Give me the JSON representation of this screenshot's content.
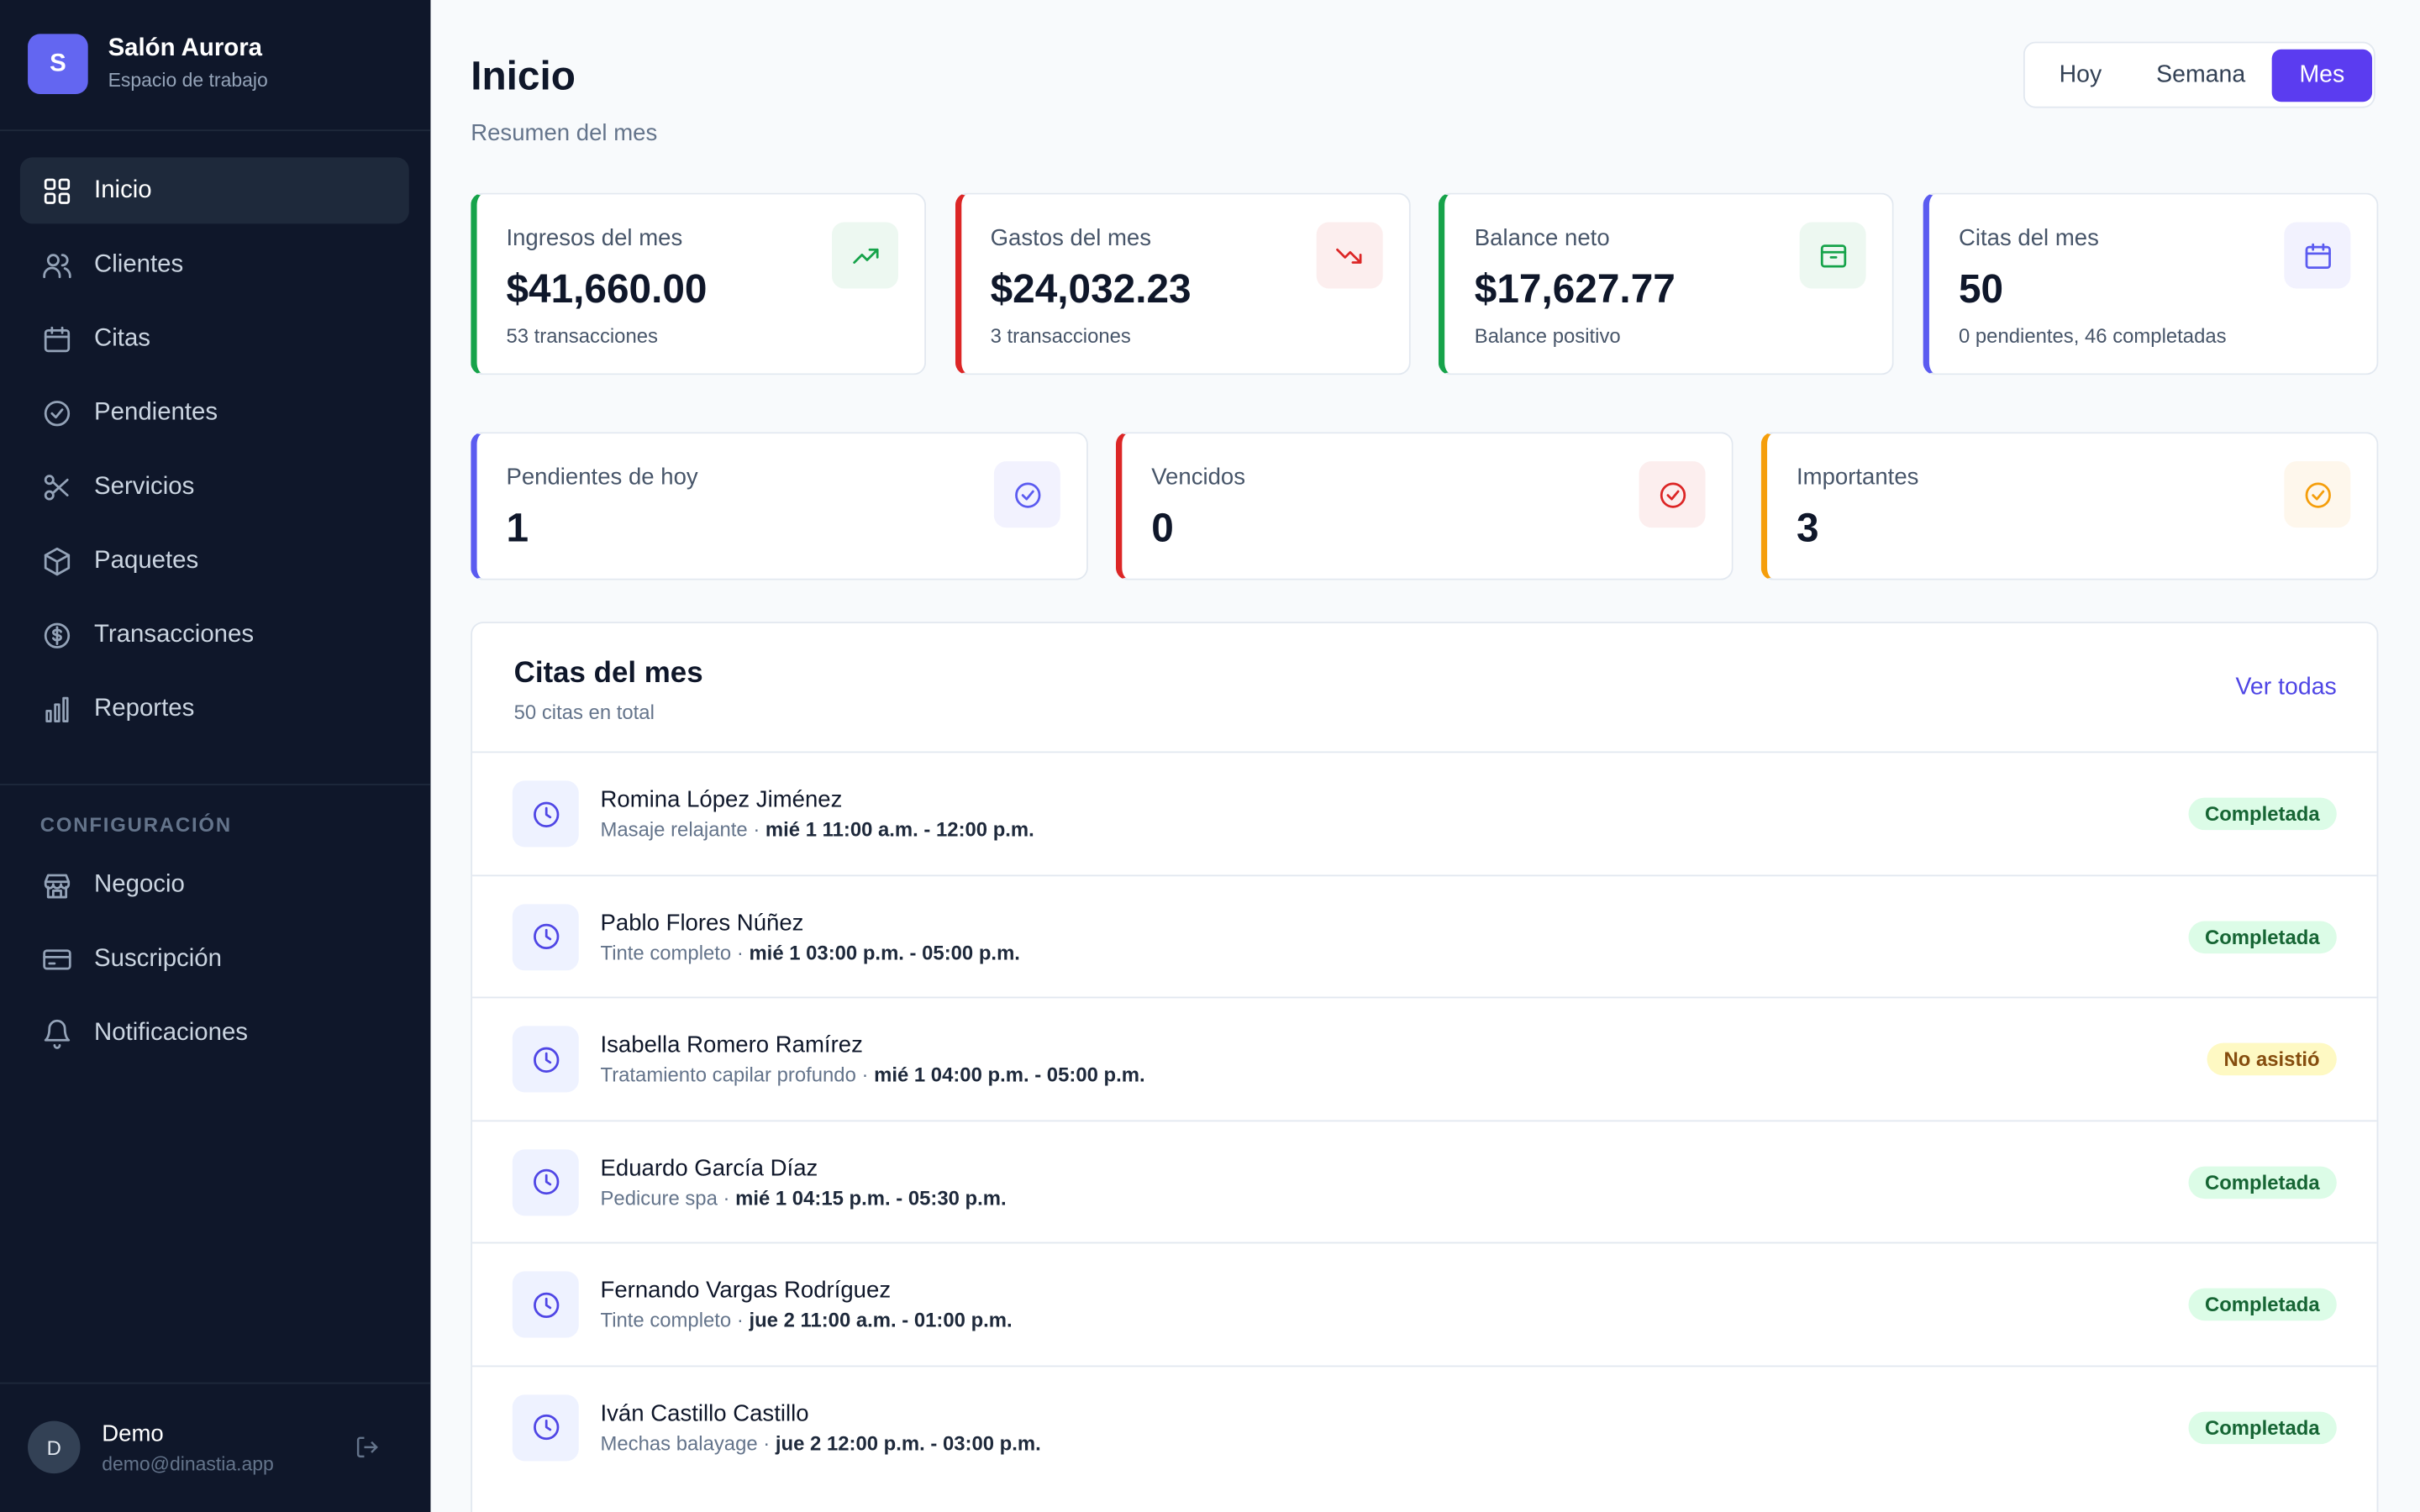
{
  "sidebar": {
    "brand": {
      "initial": "S",
      "name": "Salón Aurora",
      "subtitle": "Espacio de trabajo"
    },
    "nav": [
      "Inicio",
      "Clientes",
      "Citas",
      "Pendientes",
      "Servicios",
      "Paquetes",
      "Transacciones",
      "Reportes"
    ],
    "active_nav": 0,
    "config_title": "CONFIGURACIÓN",
    "config_nav": [
      "Negocio",
      "Suscripción",
      "Notificaciones"
    ],
    "user": {
      "initial": "D",
      "name": "Demo",
      "email": "demo@dinastia.app"
    }
  },
  "header": {
    "title": "Inicio",
    "subtitle": "Resumen del mes",
    "periods": [
      "Hoy",
      "Semana",
      "Mes"
    ],
    "active_period": 2
  },
  "stats": [
    {
      "label": "Ingresos del mes",
      "value": "$41,660.00",
      "note": "53 transacciones",
      "color": "#16a34a"
    },
    {
      "label": "Gastos del mes",
      "value": "$24,032.23",
      "note": "3 transacciones",
      "color": "#dc2626"
    },
    {
      "label": "Balance neto",
      "value": "$17,627.77",
      "note": "Balance positivo",
      "color": "#16a34a"
    },
    {
      "label": "Citas del mes",
      "value": "50",
      "note": "0 pendientes, 46 completadas",
      "color": "#5b5bf0"
    }
  ],
  "tasks": [
    {
      "label": "Pendientes de hoy",
      "value": "1",
      "color": "#5b5bf0"
    },
    {
      "label": "Vencidos",
      "value": "0",
      "color": "#dc2626"
    },
    {
      "label": "Importantes",
      "value": "3",
      "color": "#f59e0b"
    }
  ],
  "appointments": {
    "title": "Citas del mes",
    "subtitle": "50 citas en total",
    "link": "Ver todas",
    "items": [
      {
        "name": "Romina López Jiménez",
        "service": "Masaje relajante",
        "time": "mié 1 11:00 a.m. - 12:00 p.m.",
        "status": "Completada",
        "status_color": "#166534",
        "status_bg": "#dcfce7"
      },
      {
        "name": "Pablo Flores Núñez",
        "service": "Tinte completo",
        "time": "mié 1 03:00 p.m. - 05:00 p.m.",
        "status": "Completada",
        "status_color": "#166534",
        "status_bg": "#dcfce7"
      },
      {
        "name": "Isabella Romero Ramírez",
        "service": "Tratamiento capilar profundo",
        "time": "mié 1 04:00 p.m. - 05:00 p.m.",
        "status": "No asistió",
        "status_color": "#854d0e",
        "status_bg": "#fef9c3"
      },
      {
        "name": "Eduardo García Díaz",
        "service": "Pedicure spa",
        "time": "mié 1 04:15 p.m. - 05:30 p.m.",
        "status": "Completada",
        "status_color": "#166534",
        "status_bg": "#dcfce7"
      },
      {
        "name": "Fernando Vargas Rodríguez",
        "service": "Tinte completo",
        "time": "jue 2 11:00 a.m. - 01:00 p.m.",
        "status": "Completada",
        "status_color": "#166534",
        "status_bg": "#dcfce7"
      },
      {
        "name": "Iván Castillo Castillo",
        "service": "Mechas balayage",
        "time": "jue 2 12:00 p.m. - 03:00 p.m.",
        "status": "Completada",
        "status_color": "#166534",
        "status_bg": "#dcfce7"
      }
    ]
  }
}
